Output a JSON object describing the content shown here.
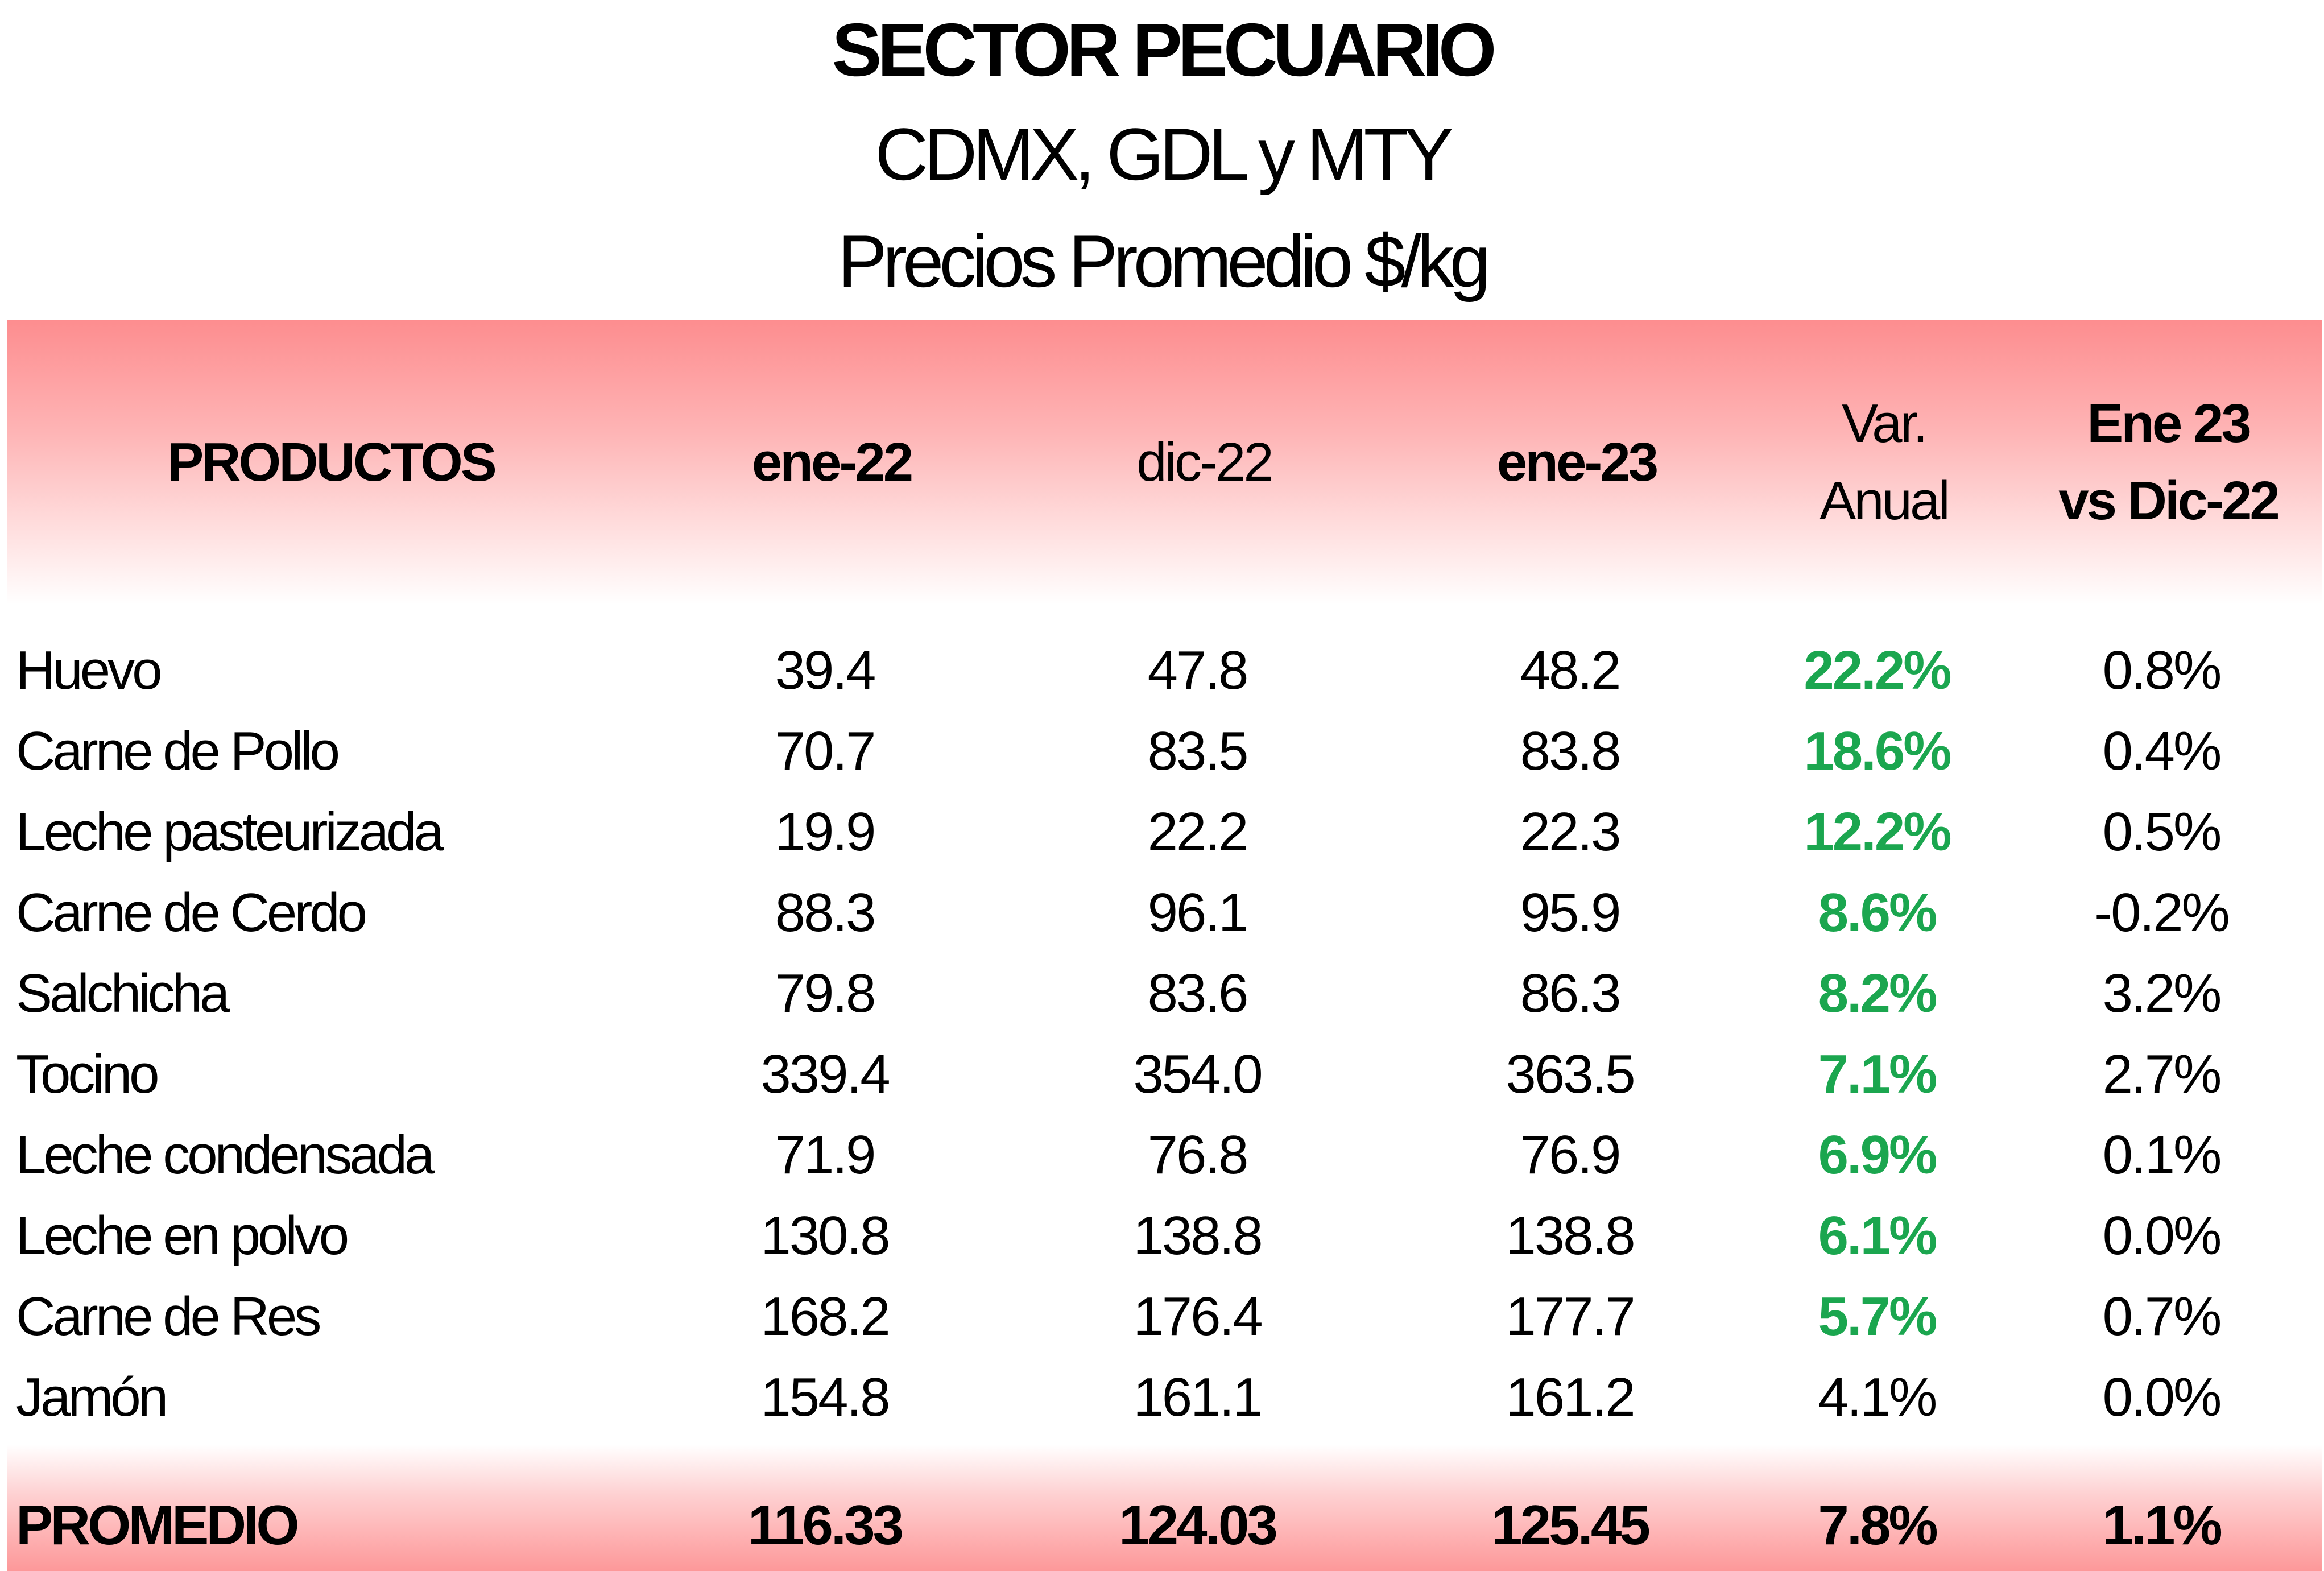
{
  "title": {
    "line1": "SECTOR PECUARIO",
    "line2": "CDMX, GDL y MTY",
    "line3": "Precios Promedio $/kg"
  },
  "header": {
    "products": "PRODUCTOS",
    "col1": "ene-22",
    "col2": "dic-22",
    "col3": "ene-23",
    "col4_line1": "Var.",
    "col4_line2": "Anual",
    "col5_line1": "Ene 23",
    "col5_line2": "vs Dic-22"
  },
  "rows": [
    {
      "product": "Huevo",
      "ene22": "39.4",
      "dic22": "47.8",
      "ene23": "48.2",
      "var_anual": "22.2%",
      "vs_dic": "0.8%"
    },
    {
      "product": "Carne de Pollo",
      "ene22": "70.7",
      "dic22": "83.5",
      "ene23": "83.8",
      "var_anual": "18.6%",
      "vs_dic": "0.4%"
    },
    {
      "product": "Leche pasteurizada",
      "ene22": "19.9",
      "dic22": "22.2",
      "ene23": "22.3",
      "var_anual": "12.2%",
      "vs_dic": "0.5%"
    },
    {
      "product": "Carne de Cerdo",
      "ene22": "88.3",
      "dic22": "96.1",
      "ene23": "95.9",
      "var_anual": "8.6%",
      "vs_dic": "-0.2%"
    },
    {
      "product": "Salchicha",
      "ene22": "79.8",
      "dic22": "83.6",
      "ene23": "86.3",
      "var_anual": "8.2%",
      "vs_dic": "3.2%"
    },
    {
      "product": "Tocino",
      "ene22": "339.4",
      "dic22": "354.0",
      "ene23": "363.5",
      "var_anual": "7.1%",
      "vs_dic": "2.7%"
    },
    {
      "product": "Leche condensada",
      "ene22": "71.9",
      "dic22": "76.8",
      "ene23": "76.9",
      "var_anual": "6.9%",
      "vs_dic": "0.1%"
    },
    {
      "product": "Leche en polvo",
      "ene22": "130.8",
      "dic22": "138.8",
      "ene23": "138.8",
      "var_anual": "6.1%",
      "vs_dic": "0.0%"
    },
    {
      "product": "Carne de Res",
      "ene22": "168.2",
      "dic22": "176.4",
      "ene23": "177.7",
      "var_anual": "5.7%",
      "vs_dic": "0.7%"
    },
    {
      "product": "Jamón",
      "ene22": "154.8",
      "dic22": "161.1",
      "ene23": "161.2",
      "var_anual": "4.1%",
      "vs_dic": "0.0%"
    }
  ],
  "footer": {
    "label": "PROMEDIO",
    "ene22": "116.33",
    "dic22": "124.03",
    "ene23": "125.45",
    "var_anual": "7.8%",
    "vs_dic": "1.1%"
  },
  "colors": {
    "header_band": "#fd8d8f",
    "highlight_green": "#1ba64f"
  }
}
